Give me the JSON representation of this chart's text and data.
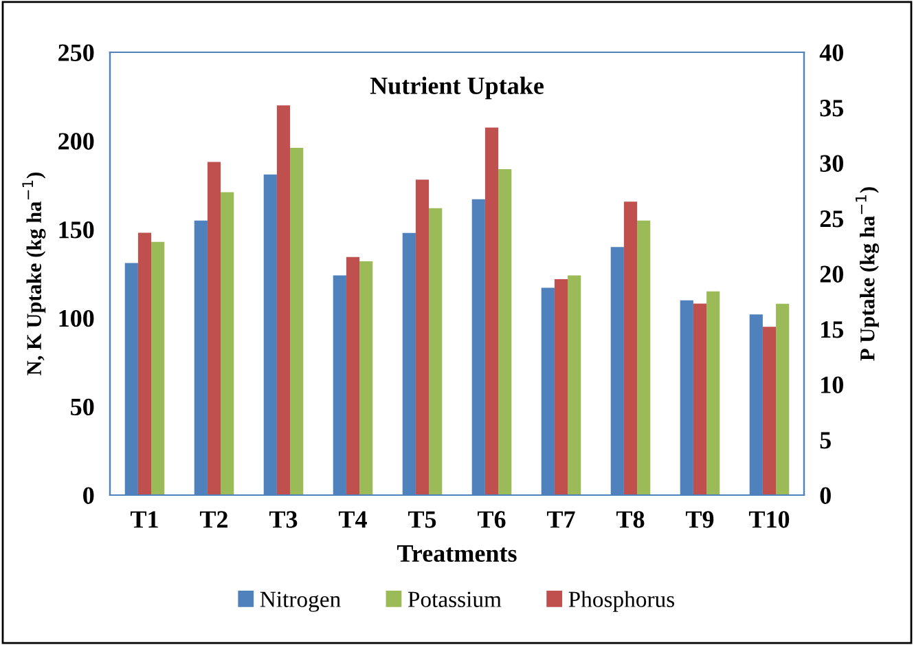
{
  "chart_data": {
    "type": "bar",
    "title": "Nutrient Uptake",
    "xlabel": "Treatments",
    "ylabel": "N, K Uptake (kg ha$^{−1}$)",
    "y2label": "P Uptake (kg ha$^{−1}$)",
    "categories": [
      "T1",
      "T2",
      "T3",
      "T4",
      "T5",
      "T6",
      "T7",
      "T8",
      "T9",
      "T10"
    ],
    "series": [
      {
        "name": "Nitrogen",
        "color": "#4f81bd",
        "values": [
          131,
          155,
          181,
          124,
          148,
          167,
          117,
          140,
          110,
          102
        ]
      },
      {
        "name": "Phosphorus",
        "color": "#c0504d",
        "axis": "y2",
        "values": [
          23.7,
          30.1,
          35.2,
          21.5,
          28.5,
          33.2,
          19.5,
          26.5,
          17.3,
          15.2
        ]
      },
      {
        "name": "Potassium",
        "color": "#9bbb59",
        "values": [
          143,
          171,
          196,
          132,
          162,
          184,
          124,
          155,
          115,
          108
        ]
      }
    ],
    "ylim": [
      0,
      250
    ],
    "yticks": [
      0,
      50,
      100,
      150,
      200,
      250
    ],
    "y2lim": [
      0,
      40
    ],
    "y2ticks": [
      0,
      5,
      10,
      15,
      20,
      25,
      30,
      35,
      40
    ],
    "legend": "bottom",
    "grid": false
  }
}
